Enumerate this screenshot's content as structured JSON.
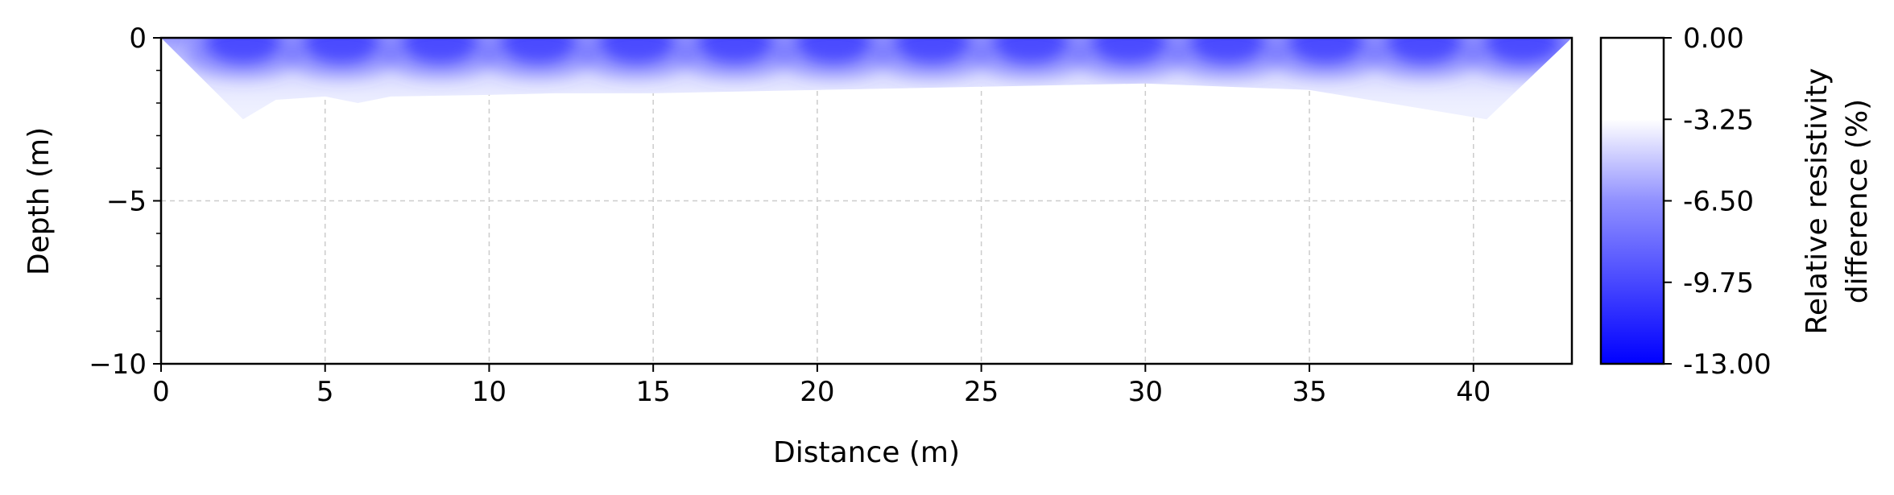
{
  "chart_data": {
    "type": "heatmap",
    "title": "",
    "xlabel": "Distance (m)",
    "ylabel": "Depth (m)",
    "xlim": [
      0,
      43
    ],
    "ylim": [
      -10,
      0
    ],
    "x_ticks": [
      0,
      5,
      10,
      15,
      20,
      25,
      30,
      35,
      40
    ],
    "y_ticks": [
      0,
      -5,
      -10
    ],
    "y_tick_labels": [
      "0",
      "−5",
      "−10"
    ],
    "grid": true,
    "colorbar": {
      "label_lines": [
        "Relative resistivity",
        "difference (%)"
      ],
      "range": [
        -13.0,
        0.0
      ],
      "ticks": [
        "0.00",
        "-3.25",
        "-6.50",
        "-9.75",
        "-13.00"
      ],
      "colors": {
        "max": "#ffffff",
        "min": "#0000ff"
      }
    },
    "section": {
      "bottom_boundary": [
        [
          0,
          0
        ],
        [
          2.5,
          -2.5
        ],
        [
          3.5,
          -1.9
        ],
        [
          5,
          -1.8
        ],
        [
          6,
          -2.0
        ],
        [
          7,
          -1.8
        ],
        [
          10,
          -1.75
        ],
        [
          12,
          -1.7
        ],
        [
          15,
          -1.7
        ],
        [
          20,
          -1.6
        ],
        [
          25,
          -1.5
        ],
        [
          30,
          -1.4
        ],
        [
          35,
          -1.6
        ],
        [
          40.4,
          -2.5
        ],
        [
          43,
          0
        ]
      ],
      "anomaly_centers_x": [
        2.5,
        5.5,
        8.5,
        11.5,
        14.5,
        17.5,
        20.5,
        23.5,
        26.5,
        29.5,
        32.5,
        35.5,
        38.5,
        41.5
      ],
      "min_value": -13.0
    }
  }
}
